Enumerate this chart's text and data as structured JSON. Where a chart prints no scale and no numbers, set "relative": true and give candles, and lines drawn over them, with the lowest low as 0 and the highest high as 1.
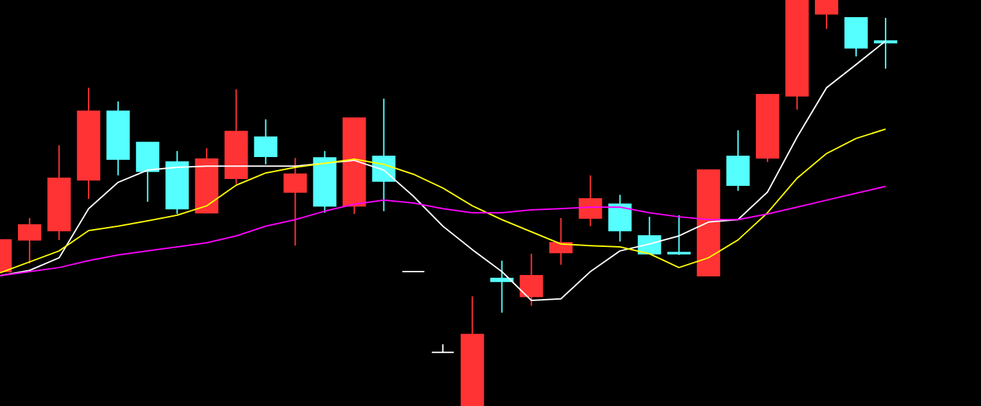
{
  "chart_data": {
    "type": "candlestick",
    "relative": true,
    "categories": [
      null,
      null,
      null,
      null,
      null,
      null,
      null,
      null,
      null,
      null,
      null,
      null,
      null,
      null,
      null,
      null,
      null,
      null,
      null,
      null,
      null,
      null,
      null,
      null,
      null,
      null,
      null,
      null,
      null,
      null,
      null
    ],
    "ohlc": [
      [
        0.331,
        0.409,
        0.331,
        0.409
      ],
      [
        0.409,
        0.463,
        0.351,
        0.446
      ],
      [
        0.432,
        0.642,
        0.409,
        0.561
      ],
      [
        0.557,
        0.784,
        0.51,
        0.726
      ],
      [
        0.726,
        0.75,
        0.568,
        0.608
      ],
      [
        0.649,
        0.649,
        0.503,
        0.578
      ],
      [
        0.601,
        0.628,
        0.473,
        0.486
      ],
      [
        0.476,
        0.635,
        0.476,
        0.608
      ],
      [
        0.561,
        0.78,
        0.547,
        0.676
      ],
      [
        0.662,
        0.706,
        0.595,
        0.615
      ],
      [
        0.527,
        0.611,
        0.395,
        0.571
      ],
      [
        0.611,
        0.628,
        0.476,
        0.493
      ],
      [
        0.493,
        0.709,
        0.473,
        0.709
      ],
      [
        0.615,
        0.757,
        0.48,
        0.554
      ],
      [
        0.331,
        0.331,
        0.331,
        0.331
      ],
      [
        0.132,
        0.152,
        0.132,
        0.132
      ],
      [
        0,
        0.27,
        0,
        0.176
      ],
      [
        0.314,
        0.358,
        0.23,
        0.307
      ],
      [
        0.27,
        0.375,
        0.247,
        0.321
      ],
      [
        0.378,
        0.463,
        0.348,
        0.402
      ],
      [
        0.463,
        0.568,
        0.443,
        0.51
      ],
      [
        0.497,
        0.52,
        0.405,
        0.432
      ],
      [
        0.419,
        0.466,
        0.375,
        0.375
      ],
      [
        0.378,
        0.47,
        0.372,
        0.375
      ],
      [
        0.321,
        0.581,
        0.321,
        0.581
      ],
      [
        0.615,
        0.679,
        0.53,
        0.544
      ],
      [
        0.611,
        0.767,
        0.601,
        0.767
      ],
      [
        0.764,
        1,
        0.73,
        1
      ],
      [
        0.966,
        1,
        0.929,
        1
      ],
      [
        0.956,
        0.956,
        0.861,
        0.882
      ],
      [
        0.899,
        0.956,
        0.831,
        0.895
      ]
    ],
    "colors": [
      "#ff3333",
      "#ff3333",
      "#ff3333",
      "#ff3333",
      "#55ffff",
      "#55ffff",
      "#55ffff",
      "#ff3333",
      "#ff3333",
      "#55ffff",
      "#ff3333",
      "#55ffff",
      "#ff3333",
      "#55ffff",
      "#ffffff",
      "#ffffff",
      "#ff3333",
      "#55ffff",
      "#ff3333",
      "#ff3333",
      "#ff3333",
      "#55ffff",
      "#55ffff",
      "#55ffff",
      "#ff3333",
      "#55ffff",
      "#ff3333",
      "#ff3333",
      "#ff3333",
      "#55ffff",
      "#55ffff"
    ],
    "series": [
      {
        "type": "line",
        "color": "#ffffff",
        "values": [
          0.321,
          0.334,
          0.365,
          0.486,
          0.551,
          0.581,
          0.588,
          0.591,
          0.591,
          0.591,
          0.591,
          0.598,
          0.605,
          0.581,
          0.517,
          0.443,
          0.385,
          0.331,
          0.26,
          0.264,
          0.331,
          0.382,
          0.399,
          0.419,
          0.453,
          0.459,
          0.527,
          0.662,
          0.784,
          0.841,
          0.899
        ]
      },
      {
        "type": "line",
        "color": "#ffff00",
        "values": [
          0.328,
          0.355,
          0.382,
          0.432,
          0.443,
          0.456,
          0.47,
          0.493,
          0.544,
          0.574,
          0.588,
          0.598,
          0.608,
          0.595,
          0.571,
          0.537,
          0.493,
          0.459,
          0.429,
          0.399,
          0.395,
          0.392,
          0.375,
          0.341,
          0.365,
          0.409,
          0.476,
          0.561,
          0.622,
          0.659,
          0.682
        ]
      },
      {
        "type": "line",
        "color": "#ff00ff",
        "values": [
          0.321,
          0.331,
          0.341,
          0.358,
          0.372,
          0.382,
          0.392,
          0.402,
          0.419,
          0.443,
          0.459,
          0.48,
          0.497,
          0.507,
          0.5,
          0.486,
          0.476,
          0.476,
          0.483,
          0.486,
          0.49,
          0.49,
          0.476,
          0.466,
          0.459,
          0.459,
          0.473,
          0.49,
          0.507,
          0.524,
          0.541
        ]
      }
    ]
  }
}
